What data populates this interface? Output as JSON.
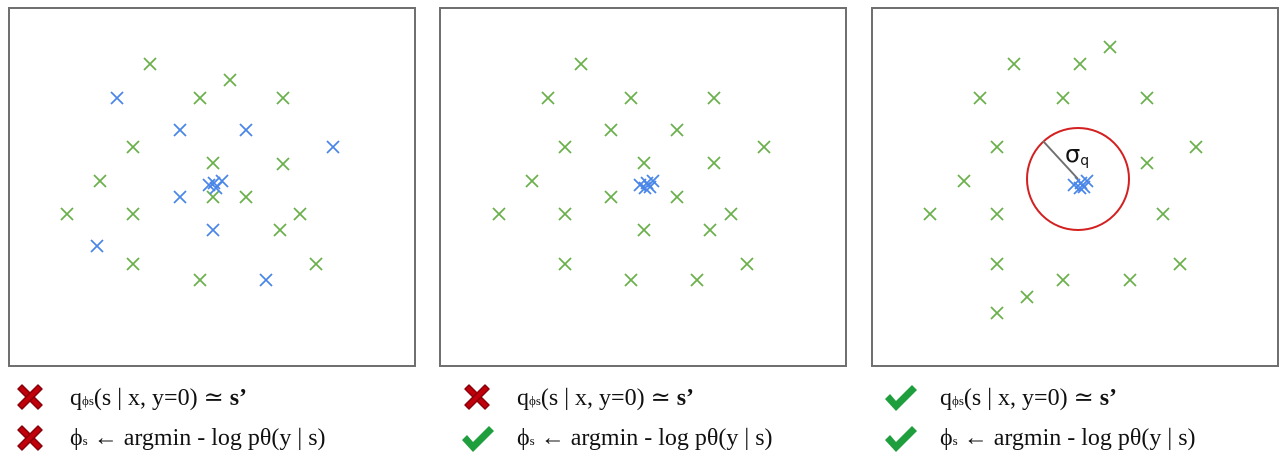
{
  "colors": {
    "green": "#6ab04c",
    "blue": "#4a86e8",
    "red_cross": "#c0000b",
    "green_check": "#1e9e3c",
    "circle": "#d32020",
    "radius_line": "#707070"
  },
  "icons": {
    "bad": "cross-mark-icon",
    "good": "check-mark-icon"
  },
  "panels": [
    {
      "green_points": [
        [
          148,
          62
        ],
        [
          228,
          78
        ],
        [
          198,
          96
        ],
        [
          281,
          96
        ],
        [
          131,
          145
        ],
        [
          211,
          161
        ],
        [
          281,
          162
        ],
        [
          98,
          179
        ],
        [
          211,
          195
        ],
        [
          244,
          195
        ],
        [
          65,
          212
        ],
        [
          131,
          212
        ],
        [
          298,
          212
        ],
        [
          278,
          228
        ],
        [
          131,
          262
        ],
        [
          314,
          262
        ],
        [
          198,
          278
        ]
      ],
      "blue_points": [
        [
          115,
          96
        ],
        [
          178,
          128
        ],
        [
          244,
          128
        ],
        [
          331,
          145
        ],
        [
          178,
          195
        ],
        [
          211,
          228
        ],
        [
          95,
          244
        ],
        [
          264,
          278
        ],
        [
          207,
          183
        ],
        [
          214,
          186
        ],
        [
          220,
          179
        ],
        [
          212,
          181
        ]
      ],
      "circle": null,
      "captions": [
        {
          "status": "bad",
          "q": "q",
          "phi_sub": "ϕs",
          "rest": "(s | x, y=0) ≃ ",
          "s_prime": "s’"
        },
        {
          "status": "bad",
          "phi": "ϕ",
          "sub": "s",
          "rest": " ← argmin  - log p",
          "theta": "θ",
          "tail": "(y | s)"
        }
      ]
    },
    {
      "green_points": [
        [
          579,
          62
        ],
        [
          546,
          96
        ],
        [
          629,
          96
        ],
        [
          712,
          96
        ],
        [
          609,
          128
        ],
        [
          675,
          128
        ],
        [
          563,
          145
        ],
        [
          762,
          145
        ],
        [
          642,
          161
        ],
        [
          712,
          161
        ],
        [
          530,
          179
        ],
        [
          609,
          195
        ],
        [
          675,
          195
        ],
        [
          497,
          212
        ],
        [
          563,
          212
        ],
        [
          729,
          212
        ],
        [
          642,
          228
        ],
        [
          708,
          228
        ],
        [
          563,
          262
        ],
        [
          745,
          262
        ],
        [
          629,
          278
        ],
        [
          695,
          278
        ]
      ],
      "blue_points": [
        [
          638,
          183
        ],
        [
          645,
          181
        ],
        [
          651,
          179
        ],
        [
          643,
          186
        ],
        [
          648,
          185
        ]
      ],
      "circle": null,
      "captions": [
        {
          "status": "bad",
          "q": "q",
          "phi_sub": "ϕs",
          "rest": "(s | x, y=0) ≃ ",
          "s_prime": "s’"
        },
        {
          "status": "good",
          "phi": "ϕ",
          "sub": "s",
          "rest": " ← argmin  - log p",
          "theta": "θ",
          "tail": "(y | s)"
        }
      ]
    },
    {
      "green_points": [
        [
          1108,
          45
        ],
        [
          1012,
          62
        ],
        [
          1078,
          62
        ],
        [
          978,
          96
        ],
        [
          1061,
          96
        ],
        [
          1145,
          96
        ],
        [
          995,
          145
        ],
        [
          1194,
          145
        ],
        [
          1145,
          161
        ],
        [
          962,
          179
        ],
        [
          928,
          212
        ],
        [
          995,
          212
        ],
        [
          1161,
          212
        ],
        [
          995,
          262
        ],
        [
          1178,
          262
        ],
        [
          1061,
          278
        ],
        [
          1128,
          278
        ],
        [
          1025,
          295
        ],
        [
          995,
          311
        ]
      ],
      "blue_points": [
        [
          1072,
          183
        ],
        [
          1079,
          181
        ],
        [
          1085,
          179
        ],
        [
          1078,
          186
        ],
        [
          1082,
          185
        ]
      ],
      "circle": {
        "cx": 1076,
        "cy": 177,
        "r": 51,
        "label": "σ",
        "label_sub": "q"
      },
      "captions": [
        {
          "status": "good",
          "q": "q",
          "phi_sub": "ϕs",
          "rest": "(s | x, y=0) ≃ ",
          "s_prime": "s’"
        },
        {
          "status": "good",
          "phi": "ϕ",
          "sub": "s",
          "rest": " ← argmin  - log p",
          "theta": "θ",
          "tail": "(y | s)"
        }
      ]
    }
  ]
}
